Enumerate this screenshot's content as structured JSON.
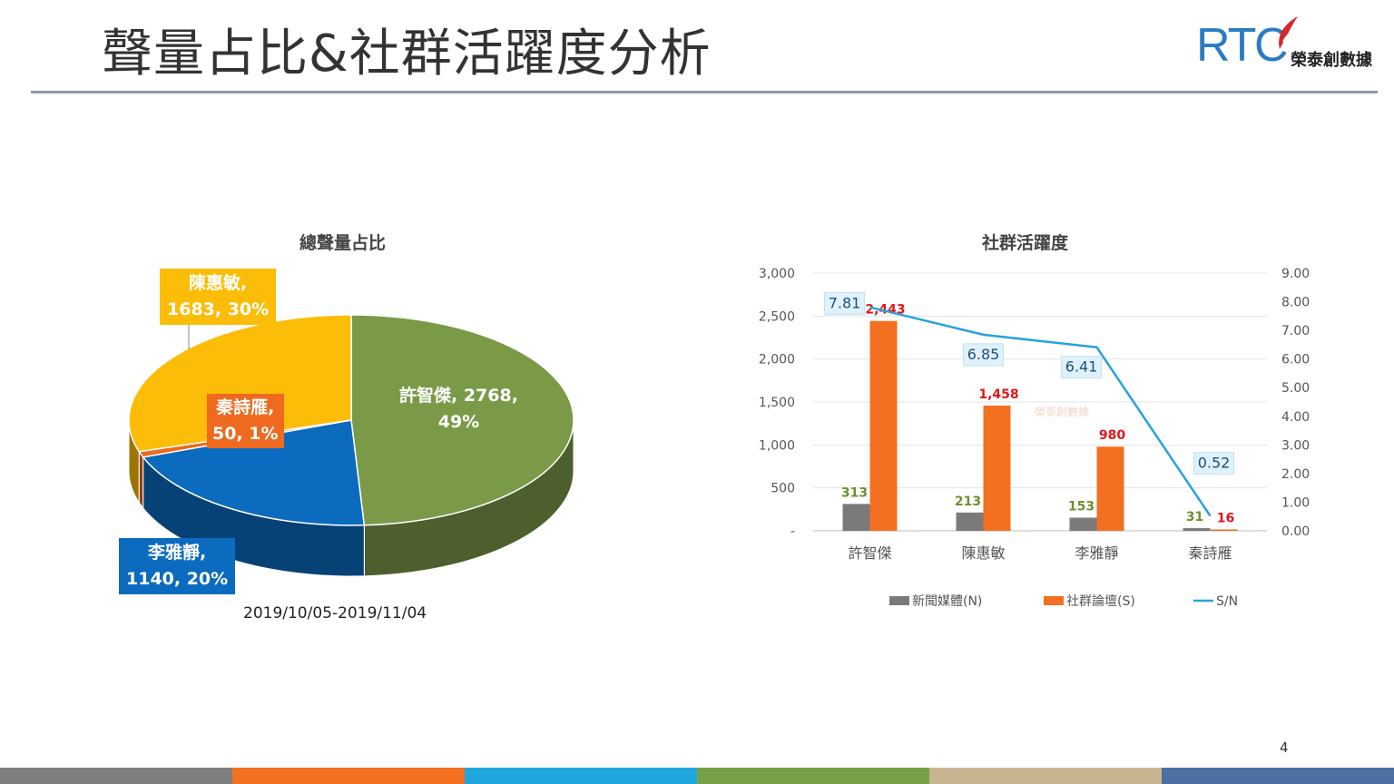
{
  "page": {
    "title": "聲量占比&社群活躍度分析",
    "page_number": "4",
    "logo": {
      "text_rt": "RT",
      "text_c": "C",
      "name": "榮泰創數據"
    },
    "footer_colors": [
      "#7f7f7f",
      "#f37021",
      "#1ea7dd",
      "#77a046",
      "#c8b490",
      "#4a6fa0"
    ]
  },
  "chart_data": [
    {
      "type": "pie",
      "title": "總聲量占比",
      "subtitle": "2019/10/05-2019/11/04",
      "slices": [
        {
          "name": "許智傑",
          "value": 2768,
          "percent": "49%",
          "color": "#7a9a48",
          "label": "許智傑, 2768,\n49%"
        },
        {
          "name": "李雅靜",
          "value": 1140,
          "percent": "20%",
          "color": "#0b6bbf",
          "label": "李雅靜,\n1140, 20%"
        },
        {
          "name": "秦詩雁",
          "value": 50,
          "percent": "1%",
          "color": "#ef6a1f",
          "label": "秦詩雁,\n50, 1%"
        },
        {
          "name": "陳惠敏",
          "value": 1683,
          "percent": "30%",
          "color": "#fbbd07",
          "label": "陳惠敏,\n1683, 30%"
        }
      ]
    },
    {
      "type": "bar",
      "title": "社群活躍度",
      "categories": [
        "許智傑",
        "陳惠敏",
        "李雅靜",
        "秦詩雁"
      ],
      "series": [
        {
          "name": "新聞媒體(N)",
          "type": "bar",
          "axis": "left",
          "color": "#7a7a7a",
          "values": [
            313,
            213,
            153,
            31
          ],
          "labels": [
            "313",
            "213",
            "153",
            "31"
          ],
          "label_color": "#6e8f2f"
        },
        {
          "name": "社群論壇(S)",
          "type": "bar",
          "axis": "left",
          "color": "#f37021",
          "values": [
            2443,
            1458,
            980,
            16
          ],
          "labels": [
            "2,443",
            "1,458",
            "980",
            "16"
          ],
          "label_color": "#e0161b"
        },
        {
          "name": "S/N",
          "type": "line",
          "axis": "right",
          "color": "#27a3dc",
          "values": [
            7.81,
            6.85,
            6.41,
            0.52
          ],
          "labels": [
            "7.81",
            "6.85",
            "6.41",
            "0.52"
          ]
        }
      ],
      "y_left": {
        "range": [
          0,
          3000
        ],
        "ticks": [
          "-",
          "500",
          "1,000",
          "1,500",
          "2,000",
          "2,500",
          "3,000"
        ]
      },
      "y_right": {
        "range": [
          0,
          9
        ],
        "ticks": [
          "0.00",
          "1.00",
          "2.00",
          "3.00",
          "4.00",
          "5.00",
          "6.00",
          "7.00",
          "8.00",
          "9.00"
        ]
      },
      "grid": true,
      "legend": {
        "position": "bottom"
      }
    }
  ]
}
